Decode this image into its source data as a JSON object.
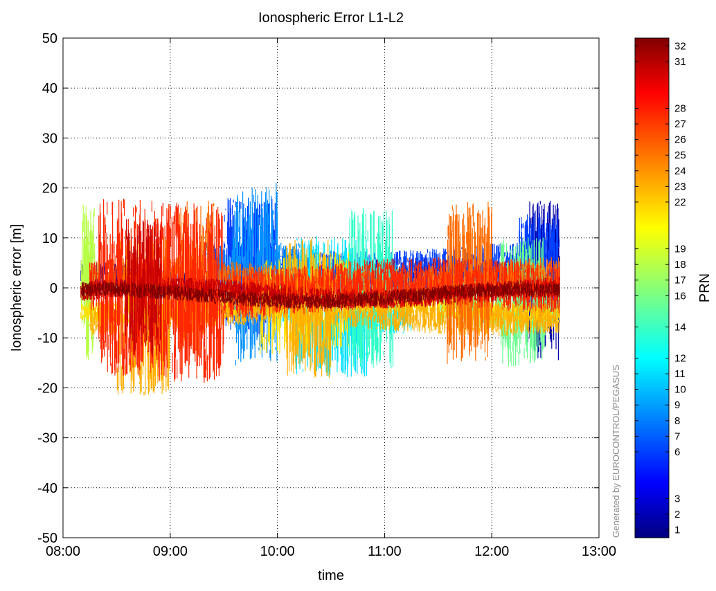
{
  "chart_data": {
    "type": "scatter",
    "title": "Ionospheric Error L1-L2",
    "xlabel": "time",
    "ylabel": "Ionospheric error [m]",
    "x_ticks": [
      "08:00",
      "09:00",
      "10:00",
      "11:00",
      "12:00",
      "13:00"
    ],
    "xlim": [
      "08:00",
      "13:00"
    ],
    "y_ticks": [
      -50,
      -40,
      -30,
      -20,
      -10,
      0,
      10,
      20,
      30,
      40,
      50
    ],
    "ylim": [
      -50,
      50
    ],
    "grid": true,
    "watermark": "Generated by EUROCONTROL/PEGASUS",
    "colorbar": {
      "label": "PRN",
      "range": [
        0.5,
        32.5
      ],
      "ticks": [
        1,
        2,
        3,
        6,
        7,
        8,
        9,
        10,
        11,
        12,
        14,
        16,
        17,
        18,
        19,
        22,
        23,
        24,
        25,
        26,
        27,
        28,
        31,
        32
      ],
      "colormap": "jet"
    },
    "series": [
      {
        "prn": 2,
        "color": "#0000a8",
        "start": "08:10",
        "end": "12:38",
        "base": 2.0,
        "amp": 3.0,
        "bursts": [
          [
            "12:20",
            "12:38",
            16
          ]
        ]
      },
      {
        "prn": 6,
        "color": "#0040ff",
        "start": "09:20",
        "end": "12:38",
        "base": 4.0,
        "amp": 4.5,
        "bursts": [
          [
            "09:30",
            "10:00",
            14
          ],
          [
            "12:15",
            "12:38",
            10
          ]
        ]
      },
      {
        "prn": 9,
        "color": "#0090ff",
        "start": "09:25",
        "end": "10:15",
        "base": 3.0,
        "amp": 6.0,
        "bursts": [
          [
            "09:35",
            "10:00",
            18
          ]
        ]
      },
      {
        "prn": 12,
        "color": "#00e0ff",
        "start": "10:00",
        "end": "11:15",
        "base": -3.0,
        "amp": 5.0,
        "bursts": [
          [
            "10:10",
            "10:50",
            14
          ]
        ]
      },
      {
        "prn": 16,
        "color": "#30ffc8",
        "start": "10:35",
        "end": "11:10",
        "base": -1.0,
        "amp": 6.0,
        "bursts": [
          [
            "10:40",
            "11:05",
            16
          ]
        ]
      },
      {
        "prn": 17,
        "color": "#6cff90",
        "start": "11:30",
        "end": "12:38",
        "base": -2.0,
        "amp": 5.0,
        "bursts": [
          [
            "12:05",
            "12:30",
            13
          ]
        ]
      },
      {
        "prn": 19,
        "color": "#b8ff48",
        "start": "08:10",
        "end": "08:20",
        "base": 0.0,
        "amp": 6.0,
        "bursts": [
          [
            "08:10",
            "08:18",
            16
          ]
        ]
      },
      {
        "prn": 22,
        "color": "#ffe000",
        "start": "08:10",
        "end": "12:38",
        "base": -4.0,
        "amp": 2.0,
        "bursts": [
          [
            "09:50",
            "10:40",
            10
          ]
        ]
      },
      {
        "prn": 23,
        "color": "#ffb000",
        "start": "08:15",
        "end": "12:38",
        "base": -5.0,
        "amp": 3.5,
        "bursts": [
          [
            "08:30",
            "09:00",
            16
          ],
          [
            "10:05",
            "10:30",
            14
          ]
        ]
      },
      {
        "prn": 25,
        "color": "#ff6c00",
        "start": "08:25",
        "end": "12:38",
        "base": 1.0,
        "amp": 4.0,
        "bursts": [
          [
            "09:05",
            "09:25",
            16
          ],
          [
            "11:35",
            "12:00",
            16
          ]
        ]
      },
      {
        "prn": 27,
        "color": "#ff2800",
        "start": "08:15",
        "end": "12:38",
        "base": 0.0,
        "amp": 5.0,
        "bursts": [
          [
            "08:20",
            "09:30",
            18
          ]
        ]
      },
      {
        "prn": 31,
        "color": "#c80000",
        "start": "08:10",
        "end": "12:38",
        "base": -1.0,
        "amp": 2.0,
        "bursts": [
          [
            "08:35",
            "08:55",
            14
          ]
        ]
      },
      {
        "prn": 32,
        "color": "#800000",
        "start": "08:10",
        "end": "12:38",
        "base": -1.5,
        "amp": 1.5,
        "bursts": []
      }
    ]
  }
}
